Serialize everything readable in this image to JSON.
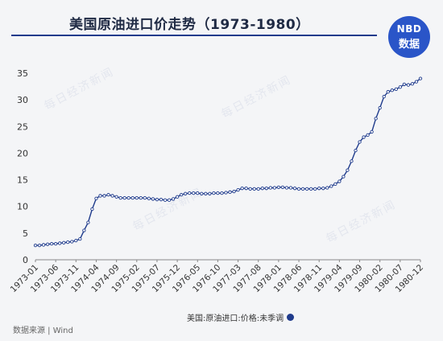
{
  "title": "美国原油进口价走势（1973-1980）",
  "logo": {
    "line1": "NBD",
    "line2": "数据"
  },
  "source": "数据来源 | Wind",
  "watermark": "每日经济新闻",
  "colors": {
    "line": "#1f3b8c",
    "title_rule": "#1f3b8c",
    "logo_bg": "#2a55c8"
  },
  "chart_data": {
    "type": "line",
    "title": "美国原油进口价走势（1973-1980）",
    "legend": "美国:原油进口:价格:未季调",
    "legend_position": "bottom-right",
    "grid": false,
    "ylim": [
      0,
      35
    ],
    "yticks": [
      0,
      5,
      10,
      15,
      20,
      25,
      30,
      35
    ],
    "x_tick_labels": [
      "1973-01",
      "1973-06",
      "1973-11",
      "1974-04",
      "1974-09",
      "1975-02",
      "1975-07",
      "1975-12",
      "1976-05",
      "1976-10",
      "1977-03",
      "1977-08",
      "1978-01",
      "1978-06",
      "1978-11",
      "1979-04",
      "1979-09",
      "1980-02",
      "1980-07",
      "1980-12"
    ],
    "series": [
      {
        "name": "美国:原油进口:价格:未季调",
        "start": "1973-01",
        "end": "1980-12",
        "frequency": "monthly",
        "values": [
          2.7,
          2.7,
          2.8,
          2.9,
          3.0,
          3.0,
          3.1,
          3.2,
          3.3,
          3.4,
          3.6,
          3.9,
          5.5,
          7.0,
          9.5,
          11.5,
          12.0,
          12.0,
          12.2,
          12.0,
          11.8,
          11.6,
          11.6,
          11.6,
          11.6,
          11.6,
          11.6,
          11.6,
          11.5,
          11.4,
          11.3,
          11.3,
          11.2,
          11.2,
          11.4,
          11.8,
          12.2,
          12.4,
          12.5,
          12.5,
          12.5,
          12.4,
          12.4,
          12.4,
          12.5,
          12.5,
          12.5,
          12.6,
          12.7,
          12.8,
          13.1,
          13.4,
          13.4,
          13.3,
          13.3,
          13.3,
          13.4,
          13.4,
          13.5,
          13.5,
          13.6,
          13.6,
          13.5,
          13.5,
          13.4,
          13.3,
          13.3,
          13.3,
          13.3,
          13.3,
          13.4,
          13.4,
          13.5,
          13.8,
          14.2,
          14.7,
          15.6,
          16.8,
          18.5,
          20.5,
          22.1,
          23.0,
          23.4,
          24.0,
          26.5,
          28.5,
          30.6,
          31.5,
          31.8,
          32.0,
          32.4,
          32.9,
          32.8,
          33.0,
          33.4,
          34.0
        ]
      }
    ]
  }
}
